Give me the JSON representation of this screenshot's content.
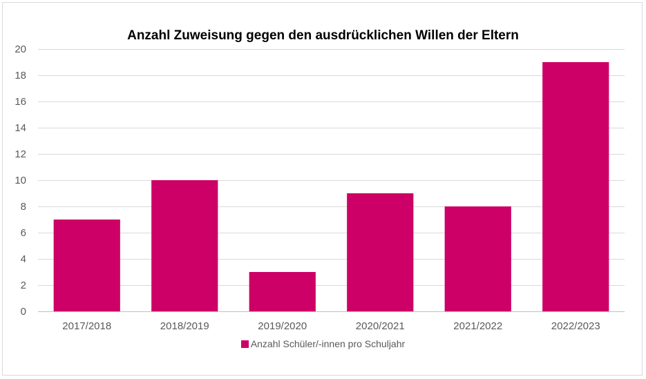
{
  "chart_data": {
    "type": "bar",
    "title": "Anzahl Zuweisung gegen den ausdrücklichen Willen der Eltern",
    "categories": [
      "2017/2018",
      "2018/2019",
      "2019/2020",
      "2020/2021",
      "2021/2022",
      "2022/2023"
    ],
    "series": [
      {
        "name": "Anzahl Schüler/-innen pro Schuljahr",
        "values": [
          7,
          10,
          3,
          9,
          8,
          19
        ]
      }
    ],
    "ylim": [
      0,
      20
    ],
    "yticks": [
      0,
      2,
      4,
      6,
      8,
      10,
      12,
      14,
      16,
      18,
      20
    ],
    "grid": true,
    "legend_position": "bottom",
    "bar_color": "#cc0066"
  }
}
